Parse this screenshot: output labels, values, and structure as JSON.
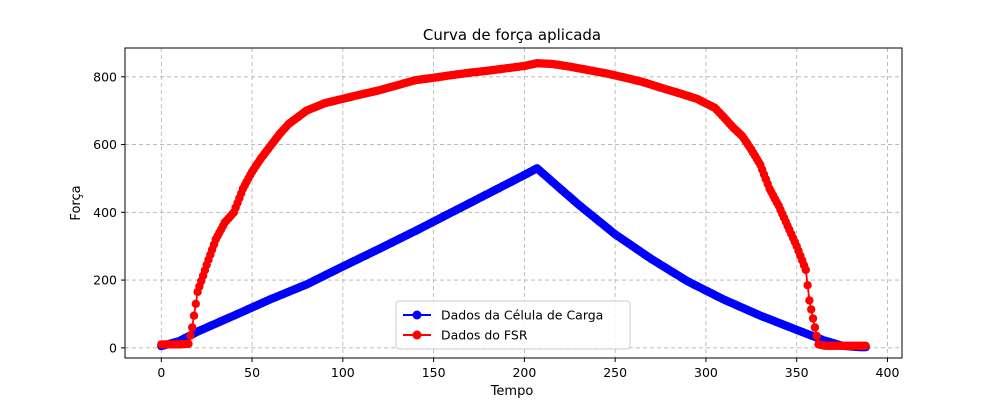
{
  "chart_data": {
    "type": "line",
    "title": "Curva de força aplicada",
    "xlabel": "Tempo",
    "ylabel": "Força",
    "xlim": [
      -20,
      408
    ],
    "ylim": [
      -30,
      885
    ],
    "xticks": [
      0,
      50,
      100,
      150,
      200,
      250,
      300,
      350,
      400
    ],
    "yticks": [
      0,
      200,
      400,
      600,
      800
    ],
    "grid": true,
    "legend_position": "lower center",
    "series": [
      {
        "name": "Dados da Célula de Carga",
        "color": "#0000ff",
        "marker": "circle",
        "x": [
          0,
          10,
          20,
          40,
          60,
          80,
          100,
          120,
          140,
          160,
          180,
          200,
          207,
          215,
          230,
          250,
          270,
          290,
          310,
          330,
          350,
          365,
          375,
          385,
          388
        ],
        "y": [
          5,
          20,
          48,
          95,
          143,
          187,
          240,
          292,
          345,
          400,
          455,
          510,
          530,
          492,
          422,
          335,
          262,
          196,
          142,
          95,
          53,
          22,
          6,
          2,
          2
        ]
      },
      {
        "name": "Dados do FSR",
        "color": "#ff0000",
        "marker": "circle",
        "x": [
          0,
          5,
          10,
          15,
          17,
          20,
          25,
          30,
          35,
          40,
          45,
          50,
          55,
          60,
          65,
          70,
          75,
          80,
          90,
          100,
          110,
          120,
          130,
          140,
          150,
          160,
          170,
          180,
          190,
          200,
          207,
          215,
          225,
          235,
          245,
          255,
          265,
          275,
          285,
          295,
          305,
          310,
          315,
          320,
          325,
          330,
          335,
          340,
          345,
          350,
          355,
          357,
          360,
          362,
          366,
          370,
          375,
          380,
          385,
          388
        ],
        "y": [
          10,
          10,
          10,
          12,
          60,
          165,
          245,
          320,
          370,
          400,
          470,
          520,
          560,
          595,
          630,
          660,
          680,
          700,
          722,
          735,
          748,
          760,
          775,
          790,
          797,
          805,
          812,
          818,
          825,
          832,
          840,
          838,
          830,
          820,
          810,
          798,
          785,
          768,
          752,
          735,
          708,
          680,
          650,
          625,
          585,
          540,
          470,
          420,
          360,
          300,
          230,
          140,
          60,
          10,
          6,
          6,
          6,
          6,
          6,
          6
        ]
      }
    ]
  }
}
